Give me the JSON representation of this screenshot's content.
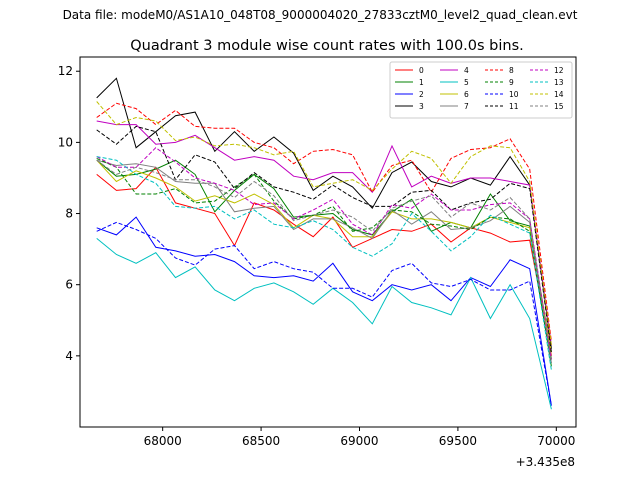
{
  "header": {
    "suptitle": "Data file: modeM0/AS1A10_048T08_9000004020_27833cztM0_level2_quad_clean.evt"
  },
  "chart_data": {
    "type": "line",
    "title": "Quadrant 3 module wise count rates with 100.0s bins.",
    "xlabel": "",
    "ylabel": "",
    "x_offset_label": "+3.435e8",
    "xlim": [
      67580,
      70100
    ],
    "ylim": [
      2.0,
      12.4
    ],
    "xticks": [
      68000,
      68500,
      69000,
      69500,
      70000
    ],
    "xtick_labels": [
      "68000",
      "68500",
      "69000",
      "69500",
      "70000"
    ],
    "yticks": [
      4,
      6,
      8,
      10,
      12
    ],
    "ytick_labels": [
      "4",
      "6",
      "8",
      "10",
      "12"
    ],
    "grid": false,
    "legend_location": "top-right",
    "x": [
      67665,
      67765,
      67865,
      67965,
      68065,
      68165,
      68265,
      68365,
      68465,
      68565,
      68665,
      68765,
      68865,
      68965,
      69065,
      69165,
      69265,
      69365,
      69465,
      69565,
      69665,
      69765,
      69865,
      69975
    ],
    "series": [
      {
        "name": "0",
        "color": "#ff0000",
        "dash": false,
        "values": [
          9.1,
          8.65,
          8.7,
          9.3,
          8.3,
          8.15,
          8.0,
          7.1,
          8.3,
          8.1,
          7.7,
          7.35,
          7.9,
          7.05,
          7.3,
          7.55,
          7.5,
          7.7,
          7.2,
          7.6,
          7.45,
          7.2,
          7.25,
          4.0
        ]
      },
      {
        "name": "1",
        "color": "#008000",
        "dash": false,
        "values": [
          9.5,
          9.05,
          9.1,
          9.25,
          9.5,
          9.1,
          8.05,
          8.65,
          9.1,
          8.7,
          7.9,
          7.95,
          8.0,
          7.55,
          7.4,
          8.05,
          8.4,
          7.5,
          7.75,
          7.6,
          8.55,
          7.8,
          7.65,
          3.9
        ]
      },
      {
        "name": "2",
        "color": "#0000ff",
        "dash": false,
        "values": [
          7.6,
          7.4,
          7.9,
          7.05,
          6.95,
          6.8,
          6.85,
          6.65,
          6.25,
          6.2,
          6.25,
          6.1,
          6.6,
          5.8,
          5.55,
          6.0,
          5.85,
          6.0,
          5.55,
          6.2,
          5.95,
          6.7,
          6.45,
          2.6
        ]
      },
      {
        "name": "3",
        "color": "#000000",
        "dash": false,
        "values": [
          11.25,
          11.8,
          9.85,
          10.3,
          10.75,
          10.85,
          9.75,
          10.3,
          9.75,
          10.15,
          9.7,
          8.65,
          9.05,
          8.75,
          8.15,
          9.15,
          9.45,
          8.9,
          8.75,
          9.0,
          8.8,
          9.6,
          8.8,
          4.2
        ]
      },
      {
        "name": "4",
        "color": "#c000c0",
        "dash": false,
        "values": [
          10.6,
          10.5,
          10.5,
          9.95,
          10.0,
          10.2,
          9.85,
          9.5,
          9.6,
          9.5,
          9.05,
          8.95,
          9.15,
          9.15,
          8.6,
          9.9,
          8.75,
          9.05,
          8.85,
          9.0,
          9.0,
          8.9,
          8.8,
          4.3
        ]
      },
      {
        "name": "5",
        "color": "#00c0c0",
        "dash": false,
        "values": [
          7.3,
          6.85,
          6.6,
          6.9,
          6.2,
          6.5,
          5.85,
          5.55,
          5.9,
          6.05,
          5.8,
          5.45,
          5.9,
          5.5,
          4.9,
          5.95,
          5.5,
          5.35,
          5.15,
          6.2,
          5.05,
          6.0,
          5.05,
          2.5
        ]
      },
      {
        "name": "6",
        "color": "#c0c000",
        "dash": false,
        "values": [
          9.5,
          8.9,
          9.2,
          9.0,
          8.75,
          8.35,
          8.5,
          8.3,
          8.55,
          8.25,
          7.6,
          7.95,
          7.85,
          7.35,
          7.35,
          8.05,
          7.85,
          7.85,
          7.75,
          7.6,
          7.9,
          7.75,
          7.6,
          4.1
        ]
      },
      {
        "name": "7",
        "color": "#808080",
        "dash": false,
        "values": [
          9.5,
          9.35,
          9.4,
          9.3,
          8.9,
          8.85,
          8.85,
          8.05,
          8.15,
          8.2,
          7.55,
          7.85,
          7.85,
          7.6,
          7.3,
          8.1,
          7.7,
          8.05,
          7.55,
          7.6,
          7.8,
          8.2,
          7.75,
          3.8
        ]
      },
      {
        "name": "8",
        "color": "#ff0000",
        "dash": true,
        "values": [
          10.7,
          11.1,
          10.95,
          10.5,
          10.9,
          10.45,
          10.4,
          10.4,
          10.0,
          9.85,
          9.4,
          9.75,
          9.8,
          9.65,
          8.6,
          9.35,
          9.5,
          8.6,
          9.55,
          9.8,
          9.85,
          10.1,
          9.25,
          4.4
        ]
      },
      {
        "name": "9",
        "color": "#008000",
        "dash": true,
        "values": [
          9.55,
          9.3,
          8.55,
          8.55,
          8.7,
          8.3,
          8.35,
          8.75,
          9.1,
          8.35,
          7.85,
          7.95,
          8.2,
          7.5,
          7.6,
          8.1,
          8.05,
          7.7,
          7.65,
          7.55,
          7.9,
          7.85,
          7.5,
          3.7
        ]
      },
      {
        "name": "10",
        "color": "#0000ff",
        "dash": true,
        "values": [
          7.5,
          7.75,
          7.55,
          7.3,
          6.75,
          6.55,
          7.0,
          7.1,
          6.45,
          6.65,
          6.45,
          6.35,
          5.9,
          5.9,
          5.65,
          6.4,
          6.6,
          6.05,
          5.95,
          6.15,
          5.85,
          5.85,
          6.1,
          2.6
        ]
      },
      {
        "name": "11",
        "color": "#000000",
        "dash": true,
        "values": [
          10.35,
          9.95,
          10.45,
          10.3,
          8.95,
          9.65,
          9.45,
          8.7,
          9.15,
          8.75,
          8.6,
          8.4,
          8.8,
          8.45,
          8.2,
          8.2,
          8.6,
          8.65,
          8.1,
          8.3,
          8.4,
          8.85,
          8.7,
          4.1
        ]
      },
      {
        "name": "12",
        "color": "#c000c0",
        "dash": true,
        "values": [
          9.6,
          9.3,
          9.3,
          9.85,
          9.45,
          9.0,
          8.85,
          8.65,
          8.25,
          8.3,
          7.85,
          8.1,
          8.4,
          7.7,
          7.4,
          8.25,
          8.15,
          8.55,
          8.1,
          8.1,
          8.25,
          8.3,
          7.85,
          3.9
        ]
      },
      {
        "name": "13",
        "color": "#00c0c0",
        "dash": true,
        "values": [
          9.6,
          9.5,
          9.1,
          8.85,
          8.2,
          8.15,
          8.2,
          7.85,
          8.1,
          7.7,
          7.6,
          7.8,
          7.55,
          7.05,
          6.8,
          7.15,
          8.0,
          7.5,
          6.95,
          7.35,
          7.95,
          7.7,
          7.45,
          3.6
        ]
      },
      {
        "name": "14",
        "color": "#c0c000",
        "dash": true,
        "values": [
          11.15,
          10.5,
          10.7,
          10.6,
          10.05,
          10.15,
          9.9,
          9.95,
          9.85,
          9.65,
          9.75,
          8.75,
          8.85,
          8.95,
          8.65,
          9.25,
          9.75,
          9.55,
          8.85,
          9.6,
          9.9,
          9.85,
          8.9,
          4.3
        ]
      },
      {
        "name": "15",
        "color": "#808080",
        "dash": true,
        "values": [
          9.5,
          9.1,
          9.3,
          9.15,
          8.95,
          8.95,
          8.75,
          8.45,
          8.9,
          8.5,
          7.8,
          7.95,
          8.1,
          7.9,
          7.5,
          8.15,
          8.35,
          8.5,
          7.9,
          8.3,
          8.1,
          8.45,
          7.85,
          3.8
        ]
      }
    ]
  }
}
